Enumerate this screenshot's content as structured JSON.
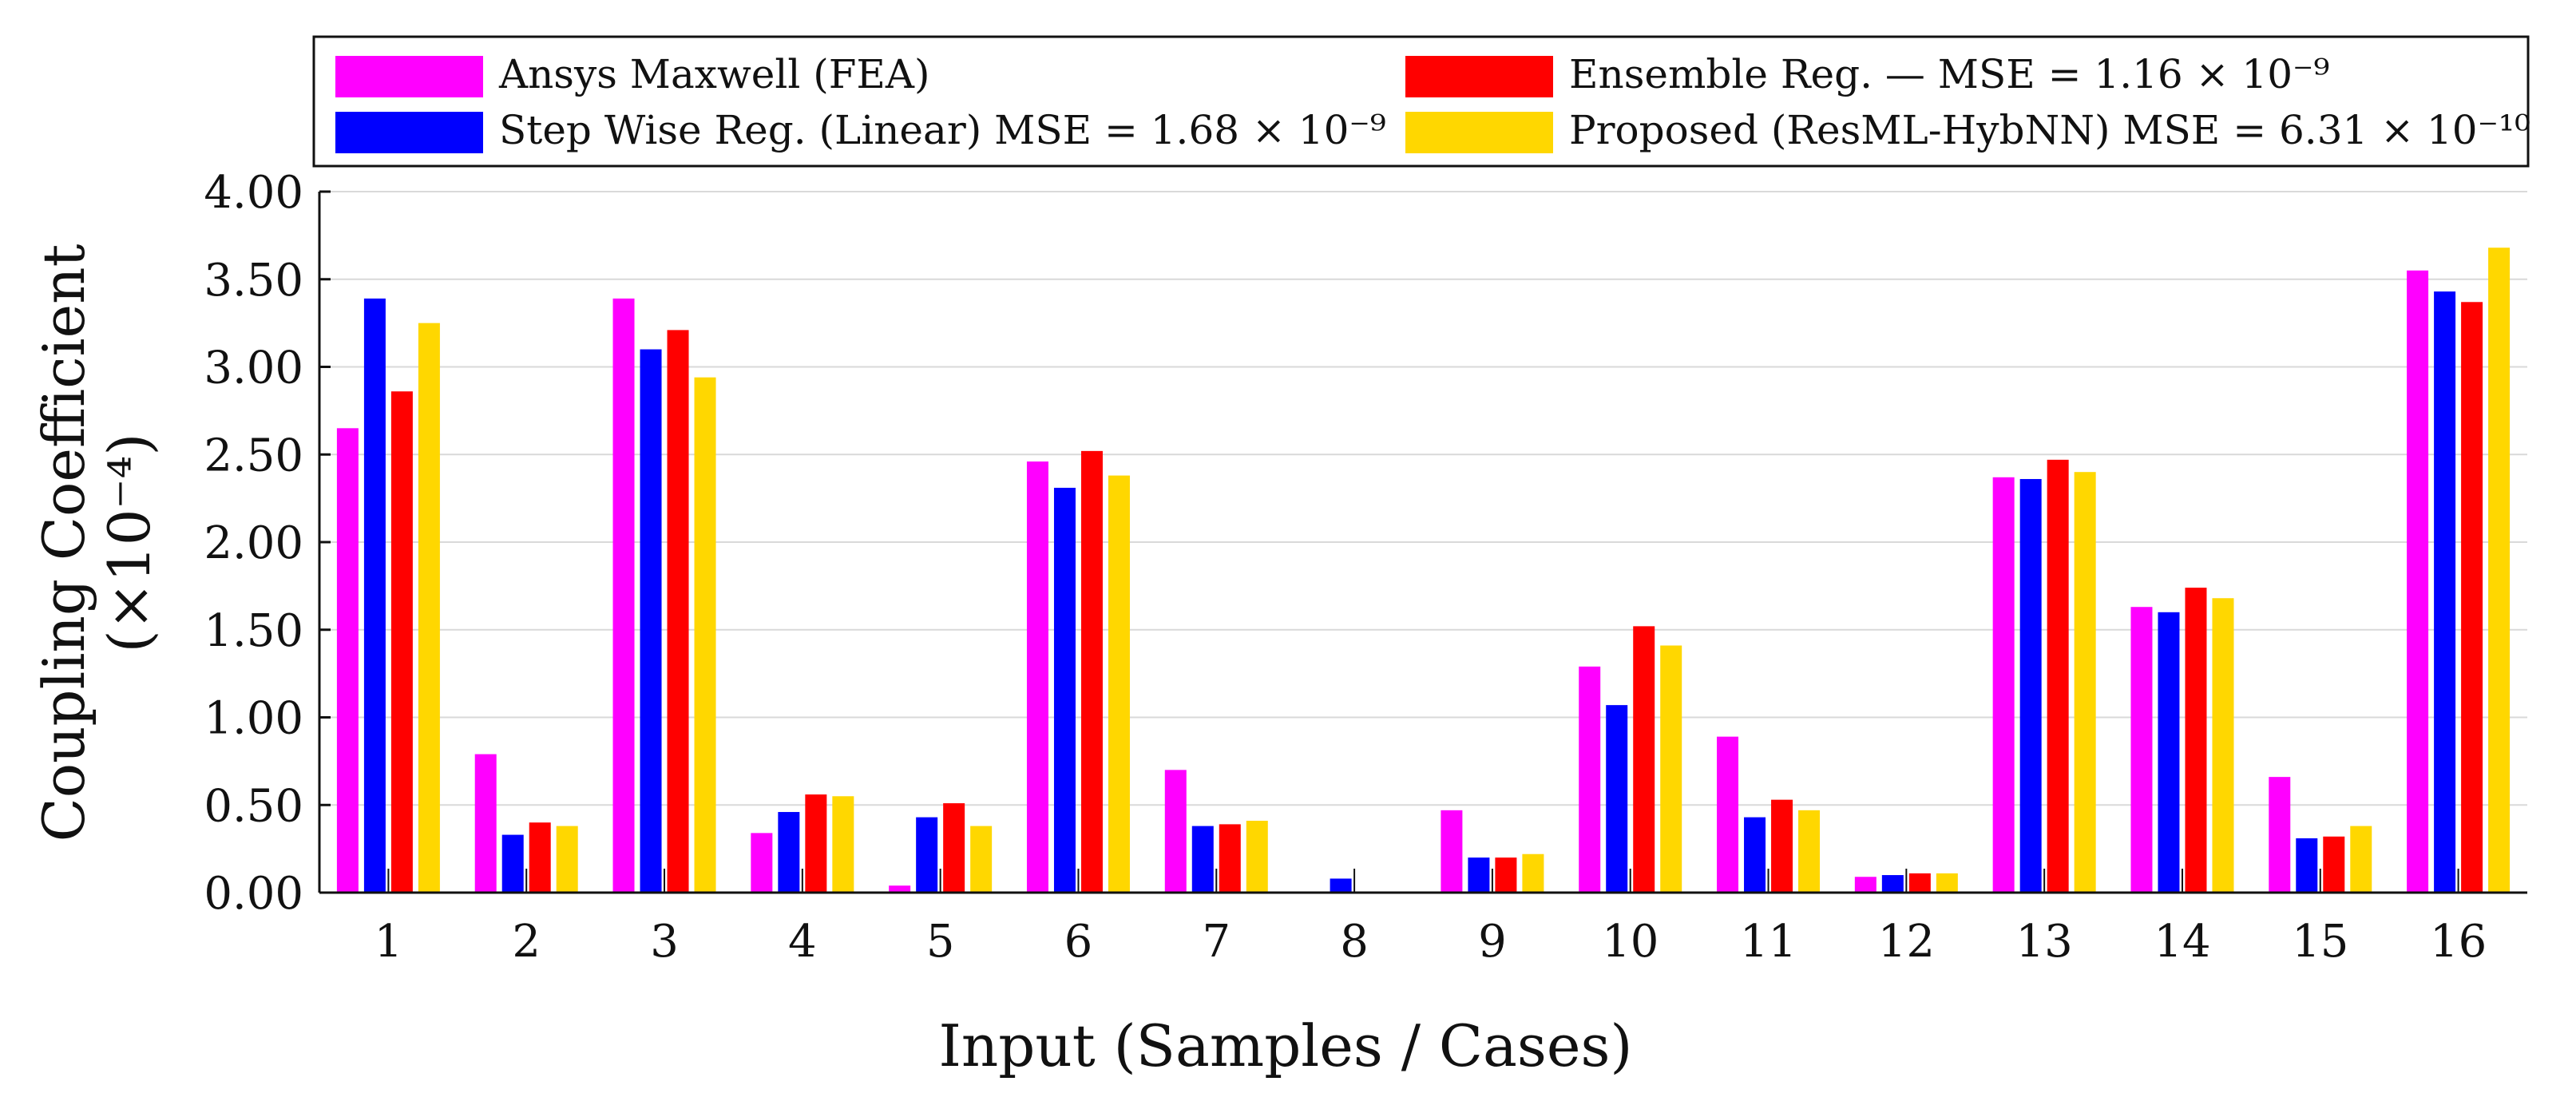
{
  "chart_data": {
    "type": "bar",
    "title": "",
    "xlabel": "Input (Samples / Cases)",
    "ylabel_line1": "Coupling Coefficient",
    "ylabel_line2": "(×10⁻⁴)",
    "ylim": [
      0,
      4.0
    ],
    "yticks": [
      "0.00",
      "0.50",
      "1.00",
      "1.50",
      "2.00",
      "2.50",
      "3.00",
      "3.50",
      "4.00"
    ],
    "categories": [
      "1",
      "2",
      "3",
      "4",
      "5",
      "6",
      "7",
      "8",
      "9",
      "10",
      "11",
      "12",
      "13",
      "14",
      "15",
      "16"
    ],
    "grid": "horizontal",
    "legend_position": "top",
    "series": [
      {
        "name": "Ansys Maxwell (FEA)",
        "color": "#ff00ff",
        "values": [
          2.65,
          0.79,
          3.39,
          0.34,
          0.04,
          2.46,
          0.7,
          0.0,
          0.47,
          1.29,
          0.89,
          0.09,
          2.37,
          1.63,
          0.66,
          3.55
        ]
      },
      {
        "name": "Step Wise Reg. (Linear) MSE = 1.68 × 10⁻⁹",
        "color": "#0000ff",
        "values": [
          3.39,
          0.33,
          3.1,
          0.46,
          0.43,
          2.31,
          0.38,
          0.08,
          0.2,
          1.07,
          0.43,
          0.1,
          2.36,
          1.6,
          0.31,
          3.43
        ]
      },
      {
        "name": "Ensemble Reg. — MSE = 1.16 × 10⁻⁹",
        "color": "#ff0000",
        "values": [
          2.86,
          0.4,
          3.21,
          0.56,
          0.51,
          2.52,
          0.39,
          0.0,
          0.2,
          1.52,
          0.53,
          0.11,
          2.47,
          1.74,
          0.32,
          3.37
        ]
      },
      {
        "name": "Proposed (ResML-HybNN) MSE = 6.31 × 10⁻¹⁰",
        "color": "#ffd700",
        "values": [
          3.25,
          0.38,
          2.94,
          0.55,
          0.38,
          2.38,
          0.41,
          0.0,
          0.22,
          1.41,
          0.47,
          0.11,
          2.4,
          1.68,
          0.38,
          3.68
        ]
      }
    ]
  }
}
